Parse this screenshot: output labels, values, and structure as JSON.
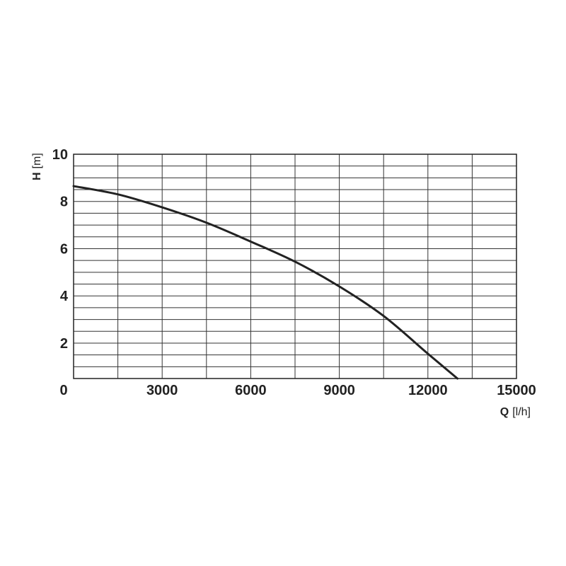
{
  "chart_data": {
    "type": "line",
    "xlabel_symbol": "Q",
    "xlabel_unit": "[l/h]",
    "ylabel_symbol": "H",
    "ylabel_unit": "[m]",
    "xlim": [
      0,
      15000
    ],
    "ylim": [
      0.5,
      10
    ],
    "x_ticks": [
      0,
      3000,
      6000,
      9000,
      12000,
      15000
    ],
    "x_tick_labels": [
      "0",
      "3000",
      "6000",
      "9000",
      "12000",
      "15000"
    ],
    "y_ticks": [
      2,
      4,
      6,
      8,
      10
    ],
    "y_tick_labels": [
      "2",
      "4",
      "6",
      "8",
      "10"
    ],
    "grid": true,
    "x_grid_step": 1500,
    "y_grid_step": 0.5,
    "line_color": "#222222",
    "series": [
      {
        "x": [
          0,
          1500,
          3000,
          4500,
          6000,
          7500,
          9000,
          10500,
          12000,
          13000
        ],
        "y": [
          8.65,
          8.3,
          7.75,
          7.1,
          6.3,
          5.45,
          4.4,
          3.15,
          1.55,
          0.5
        ]
      }
    ]
  }
}
